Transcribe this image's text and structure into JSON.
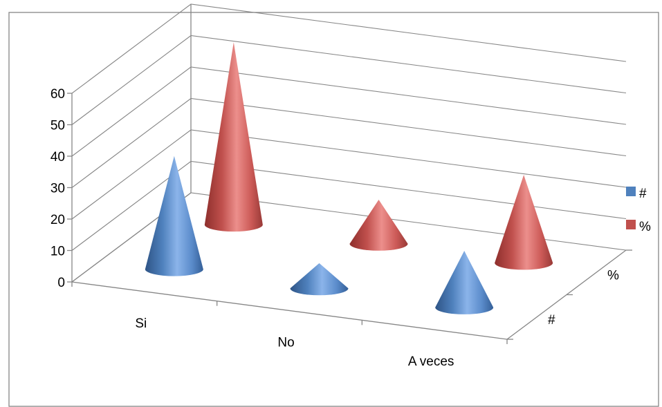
{
  "chart_data": {
    "type": "3d-cone",
    "title": "",
    "categories": [
      "Si",
      "No",
      "A veces"
    ],
    "depth_categories": [
      "#",
      "%"
    ],
    "series": [
      {
        "name": "#",
        "values": [
          36,
          8,
          18
        ],
        "color": "#4F81BD"
      },
      {
        "name": "%",
        "values": [
          58,
          14,
          28
        ],
        "color": "#C0504D"
      }
    ],
    "y_ticks": [
      "0",
      "10",
      "20",
      "30",
      "40",
      "50",
      "60"
    ],
    "ylim": [
      0,
      60
    ],
    "grid": true,
    "legend_position": "right"
  }
}
